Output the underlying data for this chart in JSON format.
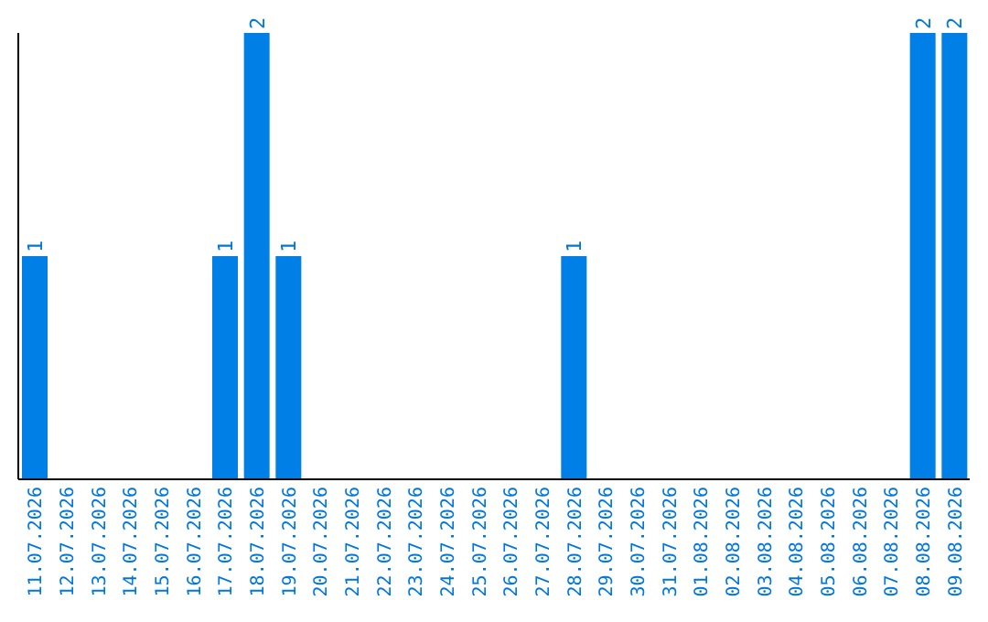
{
  "chart_data": {
    "type": "bar",
    "categories": [
      "11.07.2026",
      "12.07.2026",
      "13.07.2026",
      "14.07.2026",
      "15.07.2026",
      "16.07.2026",
      "17.07.2026",
      "18.07.2026",
      "19.07.2026",
      "20.07.2026",
      "21.07.2026",
      "22.07.2026",
      "23.07.2026",
      "24.07.2026",
      "25.07.2026",
      "26.07.2026",
      "27.07.2026",
      "28.07.2026",
      "29.07.2026",
      "30.07.2026",
      "31.07.2026",
      "01.08.2026",
      "02.08.2026",
      "03.08.2026",
      "04.08.2026",
      "05.08.2026",
      "06.08.2026",
      "07.08.2026",
      "08.08.2026",
      "09.08.2026"
    ],
    "values": [
      1,
      0,
      0,
      0,
      0,
      0,
      1,
      2,
      1,
      0,
      0,
      0,
      0,
      0,
      0,
      0,
      0,
      1,
      0,
      0,
      0,
      0,
      0,
      0,
      0,
      0,
      0,
      0,
      2,
      2
    ],
    "value_labels": [
      "1",
      null,
      null,
      null,
      null,
      null,
      "1",
      "2",
      "1",
      null,
      null,
      null,
      null,
      null,
      null,
      null,
      null,
      "1",
      null,
      null,
      null,
      null,
      null,
      null,
      null,
      null,
      null,
      null,
      "2",
      "2"
    ],
    "color": "#0080e6",
    "grid": false,
    "legend": false
  }
}
